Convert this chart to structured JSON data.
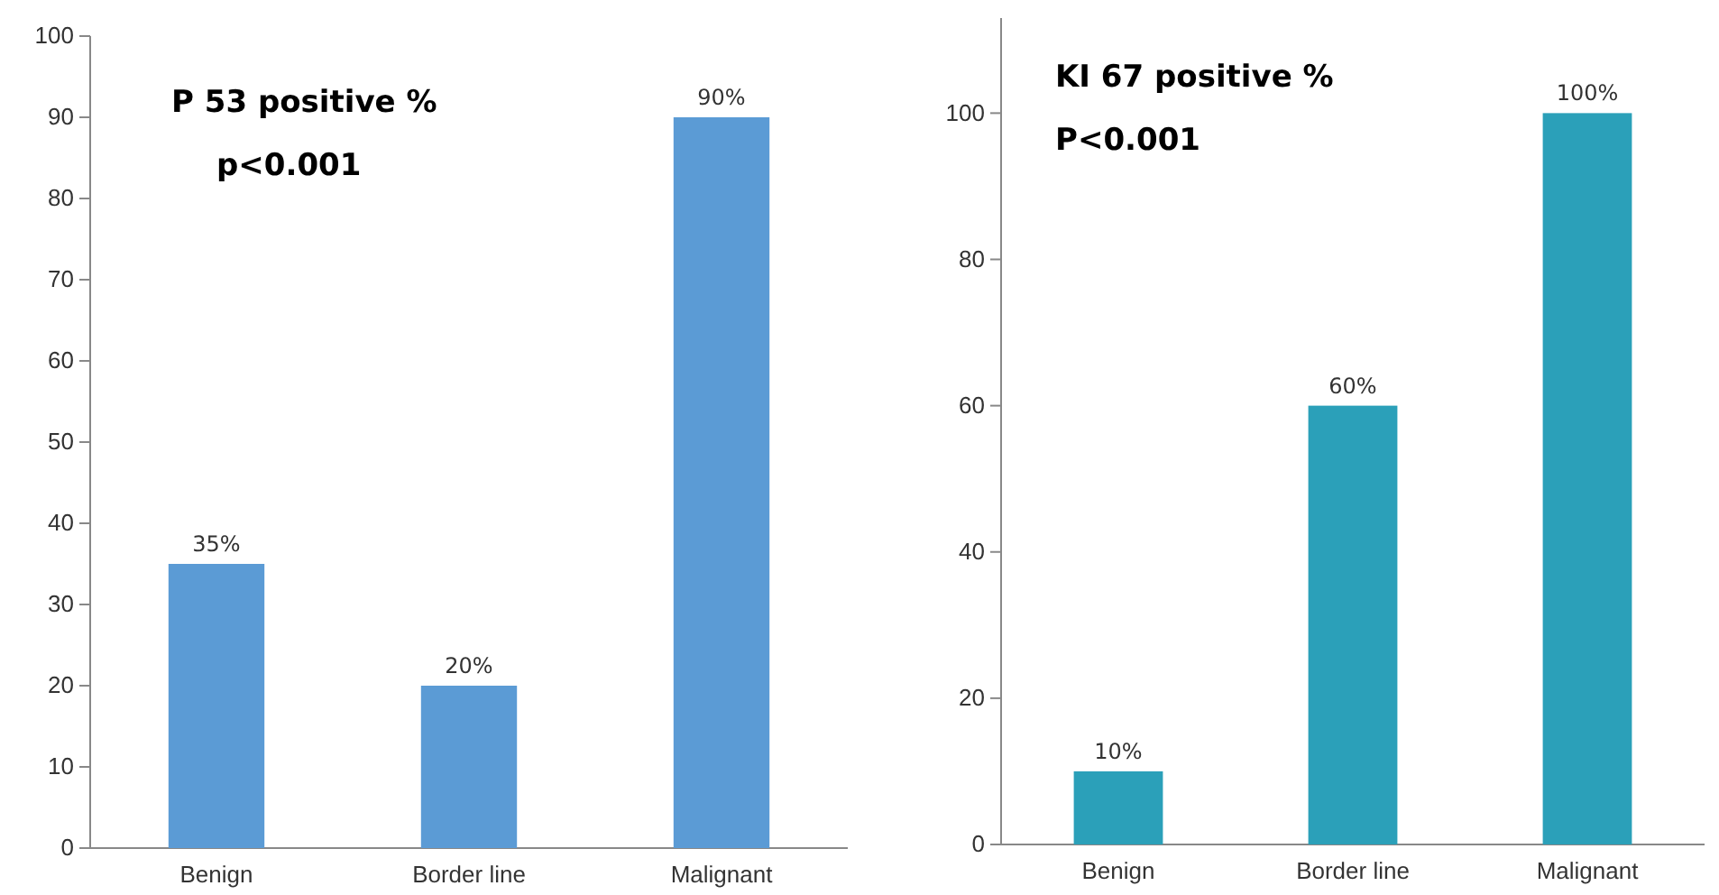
{
  "chart_data": [
    {
      "type": "bar",
      "title": "P 53 positive %",
      "annotations": [
        "p<0.001"
      ],
      "categories": [
        "Benign",
        "Border line",
        "Malignant"
      ],
      "values": [
        35,
        20,
        90
      ],
      "value_labels": [
        "35%",
        "20%",
        "90%"
      ],
      "color": "#5b9bd5",
      "ylim": [
        0,
        100
      ],
      "yticks": [
        0,
        10,
        20,
        30,
        40,
        50,
        60,
        70,
        80,
        90,
        100
      ],
      "grid": false
    },
    {
      "type": "bar",
      "title": "KI 67 positive %",
      "annotations": [
        "P<0.001"
      ],
      "categories": [
        "Benign",
        "Border line",
        "Malignant"
      ],
      "values": [
        10,
        60,
        100
      ],
      "value_labels": [
        "10%",
        "60%",
        "100%"
      ],
      "color": "#2ba0b9",
      "ylim": [
        0,
        113
      ],
      "yticks": [
        0,
        20,
        40,
        60,
        80,
        100
      ],
      "grid": false
    }
  ]
}
